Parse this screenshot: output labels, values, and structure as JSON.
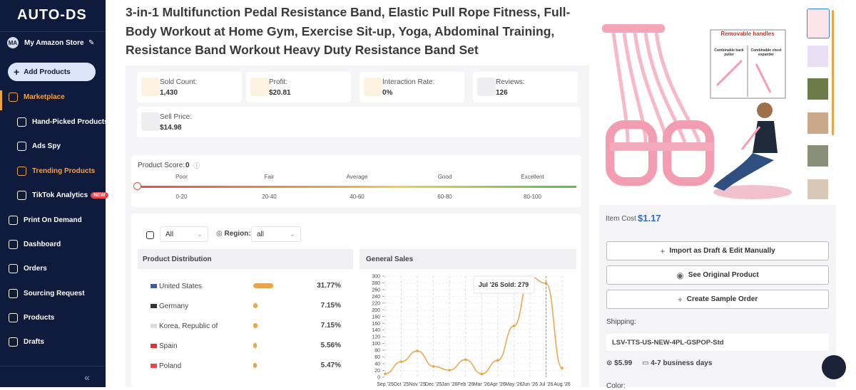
{
  "sidebar": {
    "logo": "AUTO-DS",
    "store": {
      "avatar": "MA",
      "name": "My Amazon Store"
    },
    "add_button": "Add Products",
    "nav": [
      {
        "label": "Marketplace",
        "active": true
      },
      {
        "label": "Hand-Picked Products",
        "sub": true
      },
      {
        "label": "Ads Spy",
        "sub": true
      },
      {
        "label": "Trending Products",
        "sub": true,
        "active": true
      },
      {
        "label": "TikTok Analytics",
        "sub": true,
        "badge": "NEW"
      },
      {
        "label": "Print On Demand"
      },
      {
        "label": "Dashboard"
      },
      {
        "label": "Orders"
      },
      {
        "label": "Sourcing Request"
      },
      {
        "label": "Products"
      },
      {
        "label": "Drafts"
      }
    ]
  },
  "product": {
    "title": "3-in-1 Multifunction Pedal Resistance Band, Elastic Pull Rope Fitness, Full-Body Workout at Home Gym, Exercise Sit-up, Yoga, Abdominal Training, Resistance Band Workout Heavy Duty Resistance Band Set",
    "stats": [
      {
        "label": "Sold Count:",
        "value": "1,430"
      },
      {
        "label": "Profit:",
        "value": "$20.81"
      },
      {
        "label": "Interaction Rate:",
        "value": "0%"
      },
      {
        "label": "Reviews:",
        "value": "126"
      },
      {
        "label": "Sell Price:",
        "value": "$14.98"
      }
    ],
    "score": {
      "label": "Product Score:",
      "value": 0,
      "range": [
        0,
        100
      ],
      "levels": [
        {
          "name": "Poor",
          "range": "0-20"
        },
        {
          "name": "Fair",
          "range": "20-40"
        },
        {
          "name": "Average",
          "range": "40-60"
        },
        {
          "name": "Good",
          "range": "60-80"
        },
        {
          "name": "Excellent",
          "range": "80-100"
        }
      ]
    },
    "filters": {
      "category": "All",
      "region_label": "Region:",
      "region": "all"
    },
    "distribution": {
      "title": "Product Distribution",
      "rows": [
        {
          "country": "United States",
          "value": 31.77,
          "label": "31.77%"
        },
        {
          "country": "Germany",
          "value": 7.15,
          "label": "7.15%"
        },
        {
          "country": "Korea, Republic of",
          "value": 7.15,
          "label": "7.15%"
        },
        {
          "country": "Spain",
          "value": 5.56,
          "label": "5.56%"
        },
        {
          "country": "Poland",
          "value": 5.47,
          "label": "5.47%"
        }
      ]
    },
    "sales_chart": {
      "type": "line",
      "title": "General Sales",
      "color": "#e8a54b",
      "categories": [
        "Sep '25",
        "Oct '25",
        "Nov '25",
        "Dec '25",
        "Jan '26",
        "Feb '26",
        "Mar '26",
        "Apr '26",
        "May '26",
        "Jun '26",
        "Jul '26",
        "Aug '26"
      ],
      "values": [
        10,
        46,
        78,
        32,
        21,
        52,
        10,
        50,
        152,
        298,
        279,
        27
      ],
      "ylim": [
        0,
        300
      ],
      "yticks": [
        0,
        20,
        40,
        60,
        80,
        100,
        120,
        140,
        160,
        180,
        200,
        220,
        240,
        260,
        280,
        300
      ],
      "grid": true,
      "tooltip": "Jul '26 Sold: 279"
    }
  },
  "side_panel": {
    "image_texts": {
      "heading": "Removable handles",
      "left": "Combinable back puller",
      "right": "Combinable chest expander"
    },
    "item_cost_label": "Item Cost",
    "item_cost": "$1.17",
    "buttons": [
      "Import as Draft & Edit Manually",
      "See Original Product",
      "Create Sample Order"
    ],
    "shipping_label": "Shipping:",
    "shipping_method": "LSV-TTS-US-NEW-4PL-GSPOP-Std",
    "shipping_price": "$5.99",
    "delivery": "4-7 business days",
    "color_label": "Color:"
  }
}
